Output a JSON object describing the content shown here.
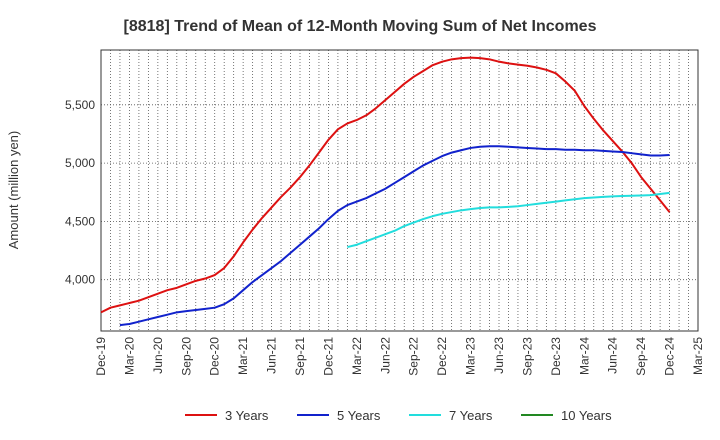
{
  "chart_data": {
    "type": "line",
    "title": "[8818]  Trend of Mean of 12-Month Moving Sum of Net Incomes",
    "ylabel": "Amount (million yen)",
    "xlabel": "",
    "x_ticks": [
      "Dec-19",
      "Mar-20",
      "Jun-20",
      "Sep-20",
      "Dec-20",
      "Mar-21",
      "Jun-21",
      "Sep-21",
      "Dec-21",
      "Mar-22",
      "Jun-22",
      "Sep-22",
      "Dec-22",
      "Mar-23",
      "Jun-23",
      "Sep-23",
      "Dec-23",
      "Mar-24",
      "Jun-24",
      "Sep-24",
      "Dec-24",
      "Mar-25"
    ],
    "y_ticks": [
      4000,
      4500,
      5000,
      5500
    ],
    "y_tick_labels": [
      "4,000",
      "4,500",
      "5,000",
      "5,500"
    ],
    "ylim": [
      3560,
      5970
    ],
    "grid": true,
    "legend_position": "bottom",
    "series": [
      {
        "name": "3 Years",
        "color": "#dd1111",
        "points": [
          [
            "Dec-19",
            3720
          ],
          [
            "Jan-20",
            3760
          ],
          [
            "Feb-20",
            3780
          ],
          [
            "Mar-20",
            3800
          ],
          [
            "Apr-20",
            3820
          ],
          [
            "May-20",
            3850
          ],
          [
            "Jun-20",
            3880
          ],
          [
            "Jul-20",
            3910
          ],
          [
            "Aug-20",
            3930
          ],
          [
            "Sep-20",
            3960
          ],
          [
            "Oct-20",
            3990
          ],
          [
            "Nov-20",
            4010
          ],
          [
            "Dec-20",
            4040
          ],
          [
            "Jan-21",
            4100
          ],
          [
            "Feb-21",
            4200
          ],
          [
            "Mar-21",
            4320
          ],
          [
            "Apr-21",
            4430
          ],
          [
            "May-21",
            4530
          ],
          [
            "Jun-21",
            4620
          ],
          [
            "Jul-21",
            4710
          ],
          [
            "Aug-21",
            4790
          ],
          [
            "Sep-21",
            4880
          ],
          [
            "Oct-21",
            4980
          ],
          [
            "Nov-21",
            5090
          ],
          [
            "Dec-21",
            5200
          ],
          [
            "Jan-22",
            5290
          ],
          [
            "Feb-22",
            5340
          ],
          [
            "Mar-22",
            5370
          ],
          [
            "Apr-22",
            5410
          ],
          [
            "May-22",
            5470
          ],
          [
            "Jun-22",
            5540
          ],
          [
            "Jul-22",
            5610
          ],
          [
            "Aug-22",
            5680
          ],
          [
            "Sep-22",
            5740
          ],
          [
            "Oct-22",
            5790
          ],
          [
            "Nov-22",
            5840
          ],
          [
            "Dec-22",
            5870
          ],
          [
            "Jan-23",
            5890
          ],
          [
            "Feb-23",
            5900
          ],
          [
            "Mar-23",
            5905
          ],
          [
            "Apr-23",
            5900
          ],
          [
            "May-23",
            5890
          ],
          [
            "Jun-23",
            5870
          ],
          [
            "Jul-23",
            5855
          ],
          [
            "Aug-23",
            5845
          ],
          [
            "Sep-23",
            5835
          ],
          [
            "Oct-23",
            5820
          ],
          [
            "Nov-23",
            5800
          ],
          [
            "Dec-23",
            5770
          ],
          [
            "Jan-24",
            5700
          ],
          [
            "Feb-24",
            5620
          ],
          [
            "Mar-24",
            5490
          ],
          [
            "Apr-24",
            5380
          ],
          [
            "May-24",
            5280
          ],
          [
            "Jun-24",
            5190
          ],
          [
            "Jul-24",
            5100
          ],
          [
            "Aug-24",
            5000
          ],
          [
            "Sep-24",
            4880
          ],
          [
            "Oct-24",
            4780
          ],
          [
            "Nov-24",
            4680
          ],
          [
            "Dec-24",
            4580
          ]
        ]
      },
      {
        "name": "5 Years",
        "color": "#1122cc",
        "points": [
          [
            "Feb-20",
            3610
          ],
          [
            "Mar-20",
            3620
          ],
          [
            "Apr-20",
            3640
          ],
          [
            "May-20",
            3660
          ],
          [
            "Jun-20",
            3680
          ],
          [
            "Jul-20",
            3700
          ],
          [
            "Aug-20",
            3720
          ],
          [
            "Sep-20",
            3730
          ],
          [
            "Oct-20",
            3740
          ],
          [
            "Nov-20",
            3750
          ],
          [
            "Dec-20",
            3760
          ],
          [
            "Jan-21",
            3790
          ],
          [
            "Feb-21",
            3840
          ],
          [
            "Mar-21",
            3910
          ],
          [
            "Apr-21",
            3980
          ],
          [
            "May-21",
            4040
          ],
          [
            "Jun-21",
            4100
          ],
          [
            "Jul-21",
            4160
          ],
          [
            "Aug-21",
            4230
          ],
          [
            "Sep-21",
            4300
          ],
          [
            "Oct-21",
            4370
          ],
          [
            "Nov-21",
            4440
          ],
          [
            "Dec-21",
            4520
          ],
          [
            "Jan-22",
            4590
          ],
          [
            "Feb-22",
            4640
          ],
          [
            "Mar-22",
            4670
          ],
          [
            "Apr-22",
            4700
          ],
          [
            "May-22",
            4740
          ],
          [
            "Jun-22",
            4780
          ],
          [
            "Jul-22",
            4830
          ],
          [
            "Aug-22",
            4880
          ],
          [
            "Sep-22",
            4930
          ],
          [
            "Oct-22",
            4980
          ],
          [
            "Nov-22",
            5020
          ],
          [
            "Dec-22",
            5060
          ],
          [
            "Jan-23",
            5090
          ],
          [
            "Feb-23",
            5110
          ],
          [
            "Mar-23",
            5130
          ],
          [
            "Apr-23",
            5140
          ],
          [
            "May-23",
            5145
          ],
          [
            "Jun-23",
            5145
          ],
          [
            "Jul-23",
            5140
          ],
          [
            "Aug-23",
            5135
          ],
          [
            "Sep-23",
            5130
          ],
          [
            "Oct-23",
            5125
          ],
          [
            "Nov-23",
            5120
          ],
          [
            "Dec-23",
            5120
          ],
          [
            "Jan-24",
            5115
          ],
          [
            "Feb-24",
            5115
          ],
          [
            "Mar-24",
            5110
          ],
          [
            "Apr-24",
            5110
          ],
          [
            "May-24",
            5105
          ],
          [
            "Jun-24",
            5100
          ],
          [
            "Jul-24",
            5095
          ],
          [
            "Aug-24",
            5085
          ],
          [
            "Sep-24",
            5075
          ],
          [
            "Oct-24",
            5065
          ],
          [
            "Nov-24",
            5065
          ],
          [
            "Dec-24",
            5070
          ]
        ]
      },
      {
        "name": "7 Years",
        "color": "#22dddd",
        "points": [
          [
            "Feb-22",
            4280
          ],
          [
            "Mar-22",
            4300
          ],
          [
            "Apr-22",
            4330
          ],
          [
            "May-22",
            4360
          ],
          [
            "Jun-22",
            4390
          ],
          [
            "Jul-22",
            4420
          ],
          [
            "Aug-22",
            4460
          ],
          [
            "Sep-22",
            4490
          ],
          [
            "Oct-22",
            4520
          ],
          [
            "Nov-22",
            4545
          ],
          [
            "Dec-22",
            4565
          ],
          [
            "Jan-23",
            4580
          ],
          [
            "Feb-23",
            4595
          ],
          [
            "Mar-23",
            4605
          ],
          [
            "Apr-23",
            4615
          ],
          [
            "May-23",
            4620
          ],
          [
            "Jun-23",
            4620
          ],
          [
            "Jul-23",
            4625
          ],
          [
            "Aug-23",
            4630
          ],
          [
            "Sep-23",
            4640
          ],
          [
            "Oct-23",
            4650
          ],
          [
            "Nov-23",
            4660
          ],
          [
            "Dec-23",
            4670
          ],
          [
            "Jan-24",
            4680
          ],
          [
            "Feb-24",
            4690
          ],
          [
            "Mar-24",
            4700
          ],
          [
            "Apr-24",
            4705
          ],
          [
            "May-24",
            4710
          ],
          [
            "Jun-24",
            4715
          ],
          [
            "Jul-24",
            4718
          ],
          [
            "Aug-24",
            4720
          ],
          [
            "Sep-24",
            4722
          ],
          [
            "Oct-24",
            4725
          ],
          [
            "Nov-24",
            4735
          ],
          [
            "Dec-24",
            4745
          ]
        ]
      },
      {
        "name": "10 Years",
        "color": "#228822",
        "points": []
      }
    ]
  }
}
